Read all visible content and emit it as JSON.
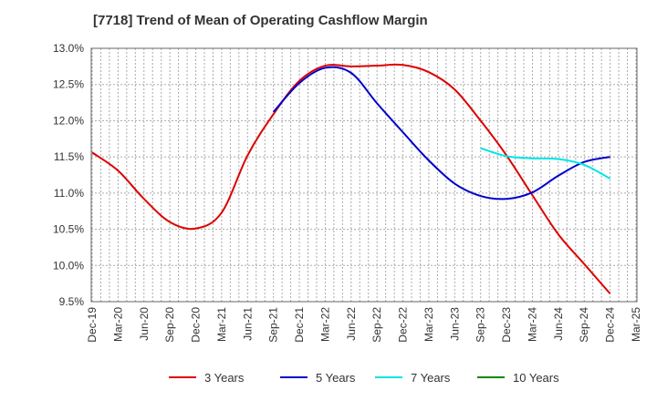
{
  "chart_data": {
    "type": "line",
    "title": "[7718]  Trend of Mean of Operating Cashflow Margin",
    "xlabel": "",
    "ylabel": "",
    "ylim": [
      9.5,
      13.0
    ],
    "yticks": [
      {
        "value": 13.0,
        "label": "13.0%"
      },
      {
        "value": 12.5,
        "label": "12.5%"
      },
      {
        "value": 12.0,
        "label": "12.0%"
      },
      {
        "value": 11.5,
        "label": "11.5%"
      },
      {
        "value": 11.0,
        "label": "11.0%"
      },
      {
        "value": 10.5,
        "label": "10.5%"
      },
      {
        "value": 10.0,
        "label": "10.0%"
      },
      {
        "value": 9.5,
        "label": "9.5%"
      }
    ],
    "categories": [
      "Dec-19",
      "Mar-20",
      "Jun-20",
      "Sep-20",
      "Dec-20",
      "Mar-21",
      "Jun-21",
      "Sep-21",
      "Dec-21",
      "Mar-22",
      "Jun-22",
      "Sep-22",
      "Dec-22",
      "Mar-23",
      "Jun-23",
      "Sep-23",
      "Dec-23",
      "Mar-24",
      "Jun-24",
      "Sep-24",
      "Dec-24",
      "Mar-25"
    ],
    "grid": true,
    "legend_position": "bottom",
    "series": [
      {
        "name": "3 Years",
        "color": "#dd0000",
        "values": [
          11.56,
          11.31,
          10.92,
          10.6,
          10.51,
          10.73,
          11.52,
          12.09,
          12.55,
          12.76,
          12.75,
          12.76,
          12.77,
          12.67,
          12.43,
          12.0,
          11.52,
          10.97,
          10.43,
          10.02,
          9.61,
          null
        ]
      },
      {
        "name": "5 Years",
        "color": "#0000cc",
        "values": [
          null,
          null,
          null,
          null,
          null,
          null,
          null,
          12.12,
          12.52,
          12.73,
          12.66,
          12.24,
          11.84,
          11.45,
          11.13,
          10.96,
          10.92,
          11.01,
          11.24,
          11.43,
          11.5,
          null
        ]
      },
      {
        "name": "7 Years",
        "color": "#00e5e5",
        "values": [
          null,
          null,
          null,
          null,
          null,
          null,
          null,
          null,
          null,
          null,
          null,
          null,
          null,
          null,
          null,
          11.62,
          11.51,
          11.48,
          11.47,
          11.39,
          11.2,
          null
        ]
      },
      {
        "name": "10 Years",
        "color": "#008800",
        "values": [
          null,
          null,
          null,
          null,
          null,
          null,
          null,
          null,
          null,
          null,
          null,
          null,
          null,
          null,
          null,
          null,
          null,
          null,
          null,
          null,
          null,
          null
        ]
      }
    ]
  }
}
